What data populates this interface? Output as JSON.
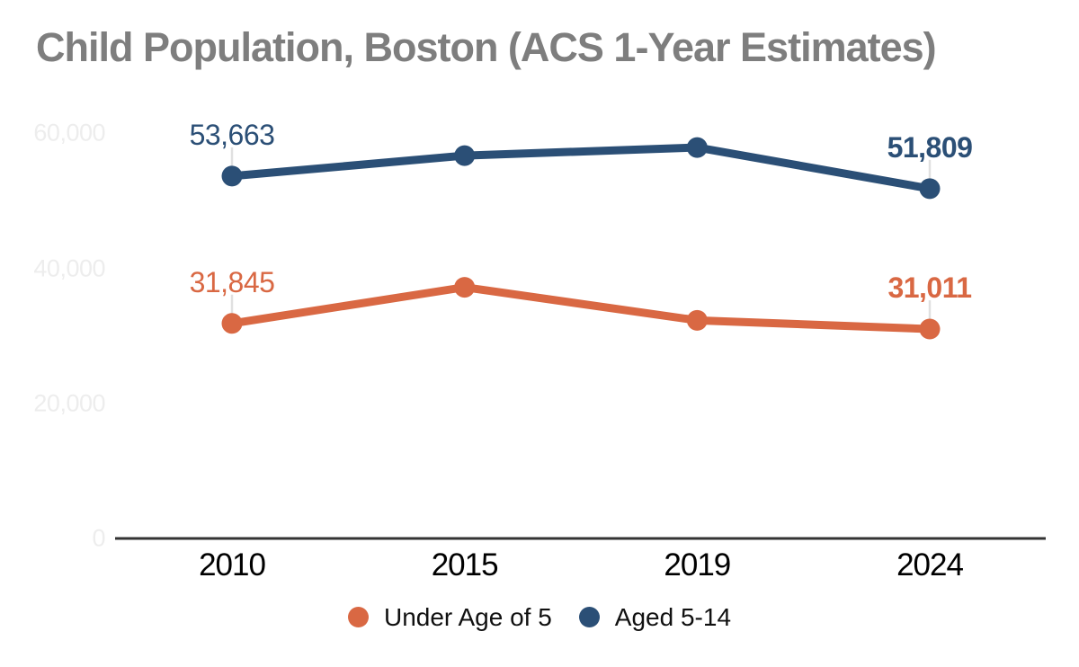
{
  "title": "Child Population, Boston (ACS 1-Year Estimates)",
  "chart_data": {
    "type": "line",
    "categories": [
      "2010",
      "2015",
      "2019",
      "2024"
    ],
    "series": [
      {
        "name": "Under Age of 5",
        "color": "#d96843",
        "values": [
          31845,
          37200,
          32300,
          31011
        ],
        "values_estimated": [
          false,
          true,
          true,
          false
        ],
        "point_labels": [
          "31,845",
          null,
          null,
          "31,011"
        ]
      },
      {
        "name": "Aged 5-14",
        "color": "#2b4f76",
        "values": [
          53663,
          56700,
          57900,
          51809
        ],
        "values_estimated": [
          false,
          true,
          true,
          false
        ],
        "point_labels": [
          "53,663",
          null,
          null,
          "51,809"
        ]
      }
    ],
    "xlabel": "",
    "ylabel": "",
    "ylim": [
      0,
      60000
    ],
    "yticks": [
      {
        "value": 0,
        "label": "0"
      },
      {
        "value": 20000,
        "label": "20,000"
      },
      {
        "value": 40000,
        "label": "40,000"
      },
      {
        "value": 60000,
        "label": "60,000"
      }
    ],
    "grid": false,
    "legend_position": "bottom"
  },
  "legend": {
    "items": [
      {
        "label": "Under Age of 5",
        "color": "#d96843"
      },
      {
        "label": "Aged 5-14",
        "color": "#2b4f76"
      }
    ]
  },
  "colors": {
    "background": "#ffffff",
    "title": "#7e7e7e",
    "axis_line": "#333333",
    "y_tick_label": "#ededed",
    "x_tick_label": "#000000",
    "legend_text": "#111111",
    "callout_line": "#e0e0e0"
  }
}
